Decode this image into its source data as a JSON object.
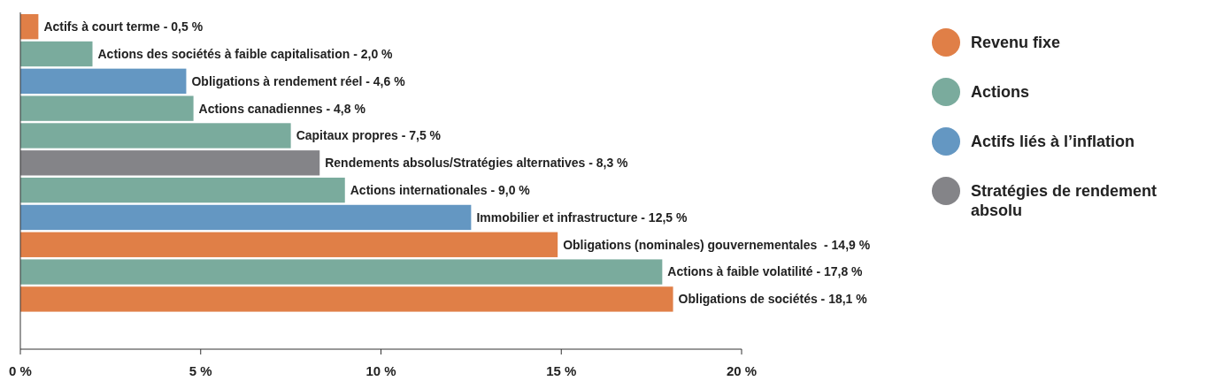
{
  "chart_data": {
    "type": "bar",
    "orientation": "horizontal",
    "stacked": true,
    "categories": [
      "Actifs à court terme - 0,5 %",
      "Actions des sociétés à faible capitalisation - 2,0 %",
      "Obligations à rendement réel - 4,6 %",
      "Actions canadiennes - 4,8 %",
      "Capitaux propres - 7,5 %",
      "Rendements absolus/Stratégies alternatives - 8,3 %",
      "Actions internationales - 9,0 %",
      "Immobilier et infrastructure - 12,5 %",
      "Obligations (nominales) gouvernementales  - 14,9 %",
      "Actions à faible volatilité - 17,8 %",
      "Obligations de sociétés - 18,1 %"
    ],
    "series": [
      {
        "name": "Revenu fixe",
        "color": "#e07f47",
        "values": [
          0.5,
          null,
          null,
          null,
          null,
          null,
          null,
          null,
          14.9,
          null,
          18.1
        ]
      },
      {
        "name": "Actions",
        "color": "#7aab9d",
        "values": [
          null,
          2.0,
          null,
          4.8,
          7.5,
          null,
          9.0,
          null,
          null,
          17.8,
          null
        ]
      },
      {
        "name": "Actifs liés à l’inflation",
        "color": "#6497c2",
        "values": [
          null,
          null,
          4.6,
          null,
          null,
          null,
          null,
          12.5,
          null,
          null,
          null
        ]
      },
      {
        "name": "Stratégies de rendement absolu",
        "color": "#848488",
        "values": [
          null,
          null,
          null,
          null,
          null,
          8.3,
          null,
          null,
          null,
          null,
          null
        ]
      }
    ],
    "xlim": [
      0,
      20
    ],
    "xticks": [
      {
        "value": 0,
        "label": "0 %"
      },
      {
        "value": 5,
        "label": "5 %"
      },
      {
        "value": 10,
        "label": "10 %"
      },
      {
        "value": 15,
        "label": "15 %"
      },
      {
        "value": 20,
        "label": "20 %"
      }
    ],
    "grid": false,
    "legend": "right"
  }
}
